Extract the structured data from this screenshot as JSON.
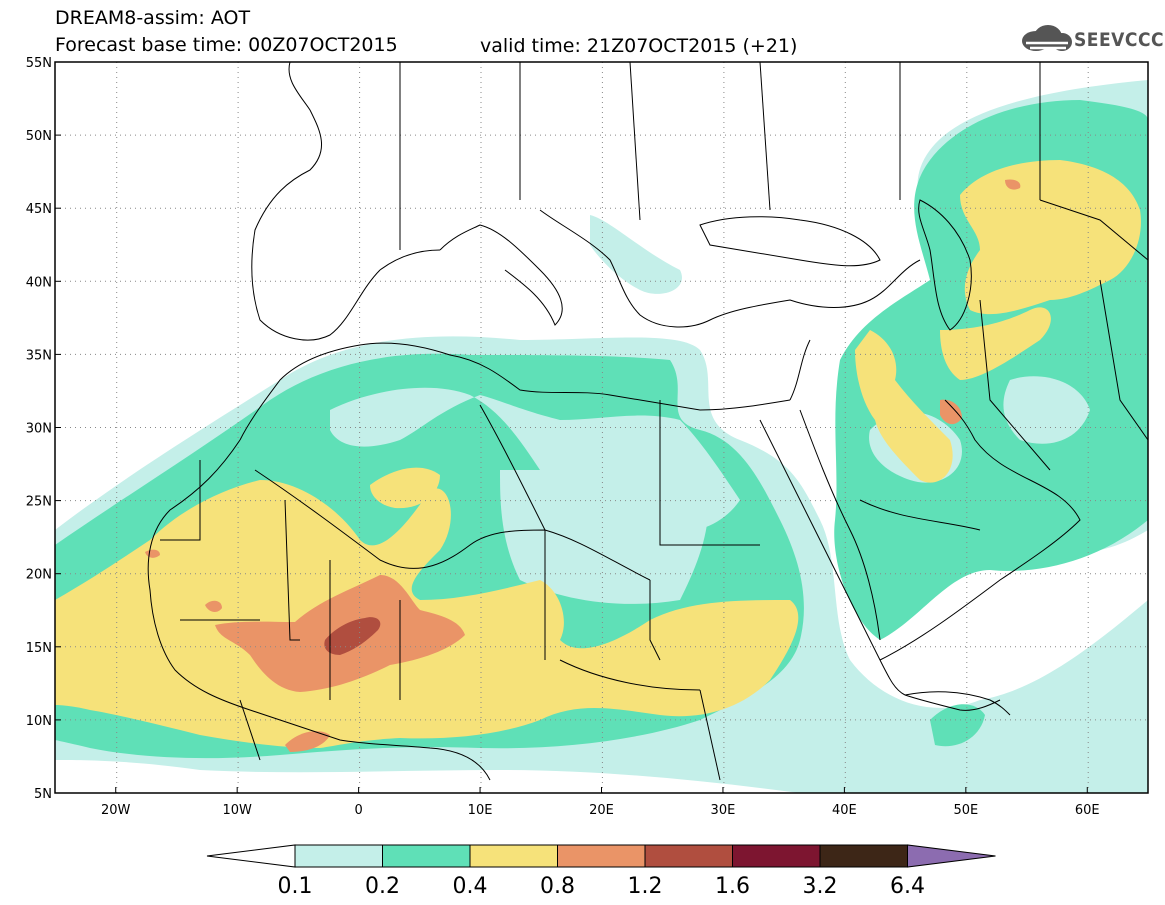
{
  "header": {
    "line1": "DREAM8-assim: AOT",
    "line2": "Forecast base time: 00Z07OCT2015",
    "valid": "valid time: 21Z07OCT2015 (+21)",
    "logo": "SEEVCCC"
  },
  "map": {
    "lon_range": [
      -25,
      65
    ],
    "lat_range": [
      5,
      55
    ],
    "lat_labels": [
      "55N",
      "50N",
      "45N",
      "40N",
      "35N",
      "30N",
      "25N",
      "20N",
      "15N",
      "10N",
      "5N"
    ],
    "lon_labels": [
      "20W",
      "10W",
      "0",
      "10E",
      "20E",
      "30E",
      "40E",
      "50E",
      "60E"
    ],
    "grid": true,
    "variable": "Aerosol Optical Thickness"
  },
  "legend": {
    "levels": [
      "0.1",
      "0.2",
      "0.4",
      "0.8",
      "1.2",
      "1.6",
      "3.2",
      "6.4"
    ],
    "colors": [
      "#ffffff",
      "#c4efe9",
      "#5fe0b7",
      "#f6e27a",
      "#ea9467",
      "#b04e3f",
      "#7d1530",
      "#3d2617",
      "#8c6cb0"
    ]
  },
  "colors": {
    "c1": "#c4efe9",
    "c2": "#5fe0b7",
    "c3": "#f6e27a",
    "c4": "#ea9467",
    "c5": "#b04e3f",
    "c6": "#7d1530"
  }
}
